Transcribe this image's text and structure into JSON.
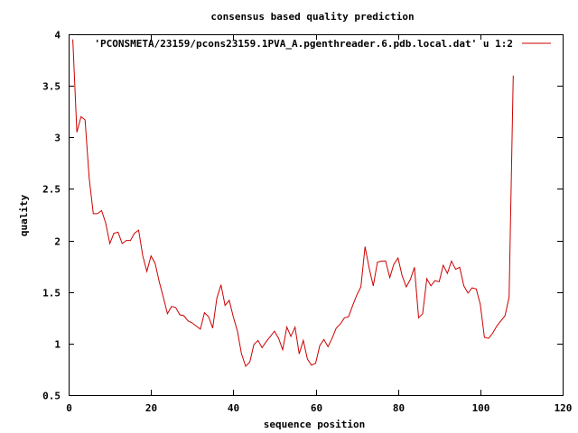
{
  "chart_data": {
    "type": "line",
    "title": "consensus based quality prediction",
    "xlabel": "sequence position",
    "ylabel": "quality",
    "xlim": [
      0,
      120
    ],
    "ylim": [
      0.5,
      4
    ],
    "x_ticks": [
      0,
      20,
      40,
      60,
      80,
      100,
      120
    ],
    "y_ticks": [
      0.5,
      1,
      1.5,
      2,
      2.5,
      3,
      3.5,
      4
    ],
    "x_tick_labels": [
      "0",
      "20",
      "40",
      "60",
      "80",
      "100",
      "120"
    ],
    "y_tick_labels": [
      "0.5",
      "1",
      "1.5",
      "2",
      "2.5",
      "3",
      "3.5",
      "4"
    ],
    "grid": false,
    "legend_position": "top-right",
    "series": [
      {
        "name": "'PCONSMETA/23159/pcons23159.1PVA_A.pgenthreader.6.pdb.local.dat' u 1:2",
        "color": "#cc0000",
        "x": [
          1,
          2,
          3,
          4,
          5,
          6,
          7,
          8,
          9,
          10,
          11,
          12,
          13,
          14,
          15,
          16,
          17,
          18,
          19,
          20,
          21,
          22,
          23,
          24,
          25,
          26,
          27,
          28,
          29,
          30,
          31,
          32,
          33,
          34,
          35,
          36,
          37,
          38,
          39,
          40,
          41,
          42,
          43,
          44,
          45,
          46,
          47,
          48,
          49,
          50,
          51,
          52,
          53,
          54,
          55,
          56,
          57,
          58,
          59,
          60,
          61,
          62,
          63,
          64,
          65,
          66,
          67,
          68,
          69,
          70,
          71,
          72,
          73,
          74,
          75,
          76,
          77,
          78,
          79,
          80,
          81,
          82,
          83,
          84,
          85,
          86,
          87,
          88,
          89,
          90,
          91,
          92,
          93,
          94,
          95,
          96,
          97,
          98,
          99,
          100,
          101,
          102,
          103,
          104,
          105,
          106,
          107,
          108
        ],
        "y": [
          3.95,
          3.05,
          3.2,
          3.17,
          2.6,
          2.26,
          2.26,
          2.29,
          2.17,
          1.97,
          2.07,
          2.08,
          1.97,
          2.0,
          2.0,
          2.07,
          2.1,
          1.85,
          1.7,
          1.85,
          1.78,
          1.6,
          1.45,
          1.29,
          1.36,
          1.35,
          1.28,
          1.27,
          1.22,
          1.2,
          1.17,
          1.14,
          1.3,
          1.26,
          1.15,
          1.44,
          1.57,
          1.37,
          1.42,
          1.26,
          1.12,
          0.9,
          0.78,
          0.82,
          0.99,
          1.03,
          0.96,
          1.02,
          1.07,
          1.12,
          1.05,
          0.94,
          1.16,
          1.07,
          1.16,
          0.9,
          1.03,
          0.85,
          0.79,
          0.81,
          0.98,
          1.04,
          0.97,
          1.05,
          1.15,
          1.19,
          1.25,
          1.26,
          1.37,
          1.47,
          1.55,
          1.94,
          1.73,
          1.56,
          1.79,
          1.8,
          1.8,
          1.64,
          1.77,
          1.83,
          1.66,
          1.55,
          1.62,
          1.74,
          1.25,
          1.29,
          1.63,
          1.56,
          1.61,
          1.6,
          1.76,
          1.68,
          1.8,
          1.72,
          1.74,
          1.56,
          1.49,
          1.54,
          1.53,
          1.38,
          1.06,
          1.05,
          1.1,
          1.17,
          1.22,
          1.27,
          1.45,
          3.6
        ]
      }
    ]
  }
}
